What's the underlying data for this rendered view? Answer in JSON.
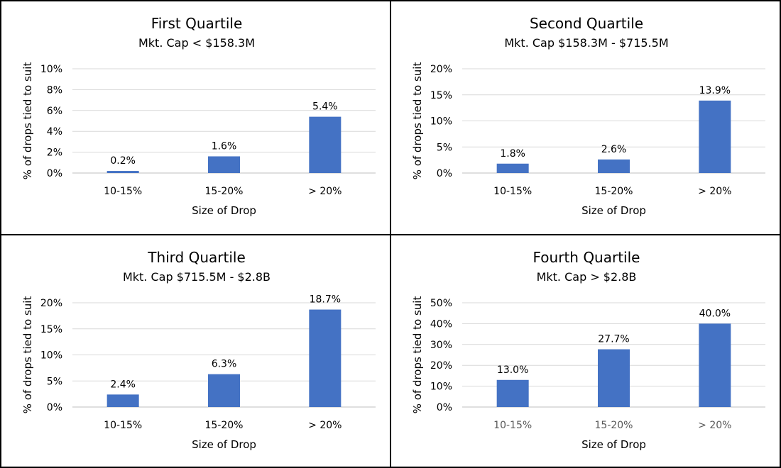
{
  "chart_data": [
    {
      "type": "bar",
      "title": "First Quartile",
      "subtitle": "Mkt. Cap < $158.3M",
      "xlabel": "Size of Drop",
      "ylabel": "% of drops tied to suit",
      "categories": [
        "10-15%",
        "15-20%",
        "> 20%"
      ],
      "values": [
        0.2,
        1.6,
        5.4
      ],
      "data_labels": [
        "0.2%",
        "1.6%",
        "5.4%"
      ],
      "ylim": [
        0,
        10
      ],
      "yticks": [
        0,
        2,
        4,
        6,
        8,
        10
      ],
      "ytick_labels": [
        "0%",
        "2%",
        "4%",
        "6%",
        "8%",
        "10%"
      ],
      "grid": true,
      "bar_color": "#4472C4",
      "tick_label_color": "#000000"
    },
    {
      "type": "bar",
      "title": "Second Quartile",
      "subtitle": "Mkt. Cap $158.3M - $715.5M",
      "xlabel": "Size of Drop",
      "ylabel": "% of drops tied to suit",
      "categories": [
        "10-15%",
        "15-20%",
        "> 20%"
      ],
      "values": [
        1.8,
        2.6,
        13.9
      ],
      "data_labels": [
        "1.8%",
        "2.6%",
        "13.9%"
      ],
      "ylim": [
        0,
        20
      ],
      "yticks": [
        0,
        5,
        10,
        15,
        20
      ],
      "ytick_labels": [
        "0%",
        "5%",
        "10%",
        "15%",
        "20%"
      ],
      "grid": true,
      "bar_color": "#4472C4",
      "tick_label_color": "#000000"
    },
    {
      "type": "bar",
      "title": "Third Quartile",
      "subtitle": "Mkt. Cap $715.5M - $2.8B",
      "xlabel": "Size of Drop",
      "ylabel": "% of drops tied to suit",
      "categories": [
        "10-15%",
        "15-20%",
        "> 20%"
      ],
      "values": [
        2.4,
        6.3,
        18.7
      ],
      "data_labels": [
        "2.4%",
        "6.3%",
        "18.7%"
      ],
      "ylim": [
        0,
        20
      ],
      "yticks": [
        0,
        5,
        10,
        15,
        20
      ],
      "ytick_labels": [
        "0%",
        "5%",
        "10%",
        "15%",
        "20%"
      ],
      "grid": true,
      "bar_color": "#4472C4",
      "tick_label_color": "#000000"
    },
    {
      "type": "bar",
      "title": "Fourth Quartile",
      "subtitle": "Mkt. Cap > $2.8B",
      "xlabel": "Size of Drop",
      "ylabel": "% of drops tied to suit",
      "categories": [
        "10-15%",
        "15-20%",
        "> 20%"
      ],
      "values": [
        13.0,
        27.7,
        40.0
      ],
      "data_labels": [
        "13.0%",
        "27.7%",
        "40.0%"
      ],
      "ylim": [
        0,
        50
      ],
      "yticks": [
        0,
        10,
        20,
        30,
        40,
        50
      ],
      "ytick_labels": [
        "0%",
        "10%",
        "20%",
        "30%",
        "40%",
        "50%"
      ],
      "grid": true,
      "bar_color": "#4472C4",
      "tick_label_color": "#595959"
    }
  ]
}
